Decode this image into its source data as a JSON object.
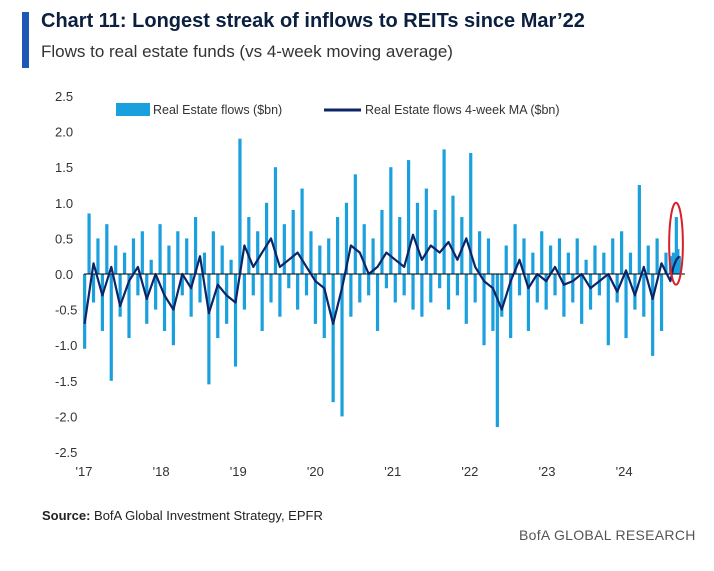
{
  "header": {
    "title": "Chart 11: Longest streak of inflows to REITs since Mar’22",
    "subtitle": "Flows to real estate funds (vs 4-week moving average)"
  },
  "footer": {
    "source_label": "Source:",
    "source_text": "BofA Global Investment Strategy, EPFR",
    "brand": "BofA GLOBAL RESEARCH"
  },
  "colors": {
    "flows": "#1aa0dd",
    "ma": "#0d2466",
    "highlight": "#d8202a",
    "accent": "#1f57b8"
  },
  "chart_data": {
    "type": "bar",
    "ylim": [
      -2.5,
      2.5
    ],
    "yticks": [
      "2.5",
      "2.0",
      "1.5",
      "1.0",
      "0.5",
      "0.0",
      "-0.5",
      "-1.0",
      "-1.5",
      "-2.0",
      "-2.5"
    ],
    "ytick_values": [
      2.5,
      2.0,
      1.5,
      1.0,
      0.5,
      0.0,
      -0.5,
      -1.0,
      -1.5,
      -2.0,
      -2.5
    ],
    "xticks": [
      "'17",
      "'18",
      "'19",
      "'20",
      "'21",
      "'22",
      "'23",
      "'24"
    ],
    "xtick_dates": [
      "2017-01-01",
      "2018-01-01",
      "2019-01-01",
      "2020-01-01",
      "2021-01-01",
      "2022-01-01",
      "2023-01-01",
      "2024-01-01"
    ],
    "xlim": [
      "2017-01-01",
      "2024-10-15"
    ],
    "legend_position": "top",
    "series": [
      {
        "name": "Real Estate flows ($bn)",
        "type": "bar",
        "x": [
          "2017-01-04",
          "2017-01-25",
          "2017-02-15",
          "2017-03-08",
          "2017-03-29",
          "2017-04-19",
          "2017-05-10",
          "2017-05-31",
          "2017-06-21",
          "2017-07-12",
          "2017-08-02",
          "2017-08-23",
          "2017-09-13",
          "2017-10-04",
          "2017-10-25",
          "2017-11-15",
          "2017-12-06",
          "2017-12-27",
          "2018-01-17",
          "2018-02-07",
          "2018-02-28",
          "2018-03-21",
          "2018-04-11",
          "2018-05-02",
          "2018-05-23",
          "2018-06-13",
          "2018-07-04",
          "2018-07-25",
          "2018-08-15",
          "2018-09-05",
          "2018-09-26",
          "2018-10-17",
          "2018-11-07",
          "2018-11-28",
          "2018-12-19",
          "2019-01-09",
          "2019-01-30",
          "2019-02-20",
          "2019-03-13",
          "2019-04-03",
          "2019-04-24",
          "2019-05-15",
          "2019-06-05",
          "2019-06-26",
          "2019-07-17",
          "2019-08-07",
          "2019-08-28",
          "2019-09-18",
          "2019-10-09",
          "2019-10-30",
          "2019-11-20",
          "2019-12-11",
          "2020-01-01",
          "2020-01-22",
          "2020-02-12",
          "2020-03-04",
          "2020-03-25",
          "2020-04-15",
          "2020-05-06",
          "2020-05-27",
          "2020-06-17",
          "2020-07-08",
          "2020-07-29",
          "2020-08-19",
          "2020-09-09",
          "2020-09-30",
          "2020-10-21",
          "2020-11-11",
          "2020-12-02",
          "2020-12-23",
          "2021-01-13",
          "2021-02-03",
          "2021-02-24",
          "2021-03-17",
          "2021-04-07",
          "2021-04-28",
          "2021-05-19",
          "2021-06-09",
          "2021-06-30",
          "2021-07-21",
          "2021-08-11",
          "2021-09-01",
          "2021-09-22",
          "2021-10-13",
          "2021-11-03",
          "2021-11-24",
          "2021-12-15",
          "2022-01-05",
          "2022-01-26",
          "2022-02-16",
          "2022-03-09",
          "2022-03-30",
          "2022-04-20",
          "2022-05-11",
          "2022-06-01",
          "2022-06-22",
          "2022-07-13",
          "2022-08-03",
          "2022-08-24",
          "2022-09-14",
          "2022-10-05",
          "2022-10-26",
          "2022-11-16",
          "2022-12-07",
          "2022-12-28",
          "2023-01-18",
          "2023-02-08",
          "2023-03-01",
          "2023-03-22",
          "2023-04-12",
          "2023-05-03",
          "2023-05-24",
          "2023-06-14",
          "2023-07-05",
          "2023-07-26",
          "2023-08-16",
          "2023-09-06",
          "2023-09-27",
          "2023-10-18",
          "2023-11-08",
          "2023-11-29",
          "2023-12-20",
          "2024-01-10",
          "2024-01-31",
          "2024-02-21",
          "2024-03-13",
          "2024-04-03",
          "2024-04-24",
          "2024-05-15",
          "2024-06-05",
          "2024-06-26",
          "2024-07-17",
          "2024-08-07",
          "2024-08-14",
          "2024-08-21",
          "2024-08-28",
          "2024-09-04",
          "2024-09-11",
          "2024-09-18"
        ],
        "values": [
          -1.05,
          0.85,
          -0.4,
          0.5,
          -0.8,
          0.7,
          -1.5,
          0.4,
          -0.6,
          0.3,
          -0.9,
          0.5,
          -0.3,
          0.6,
          -0.7,
          0.2,
          -0.5,
          0.7,
          -0.8,
          0.4,
          -1.0,
          0.6,
          -0.3,
          0.5,
          -0.6,
          0.8,
          -0.4,
          0.3,
          -1.55,
          0.6,
          -0.9,
          0.4,
          -0.7,
          0.2,
          -1.3,
          1.9,
          -0.5,
          0.8,
          -0.3,
          0.6,
          -0.8,
          1.0,
          -0.4,
          1.5,
          -0.6,
          0.7,
          -0.2,
          0.9,
          -0.5,
          1.2,
          -0.3,
          0.6,
          -0.7,
          0.4,
          -0.9,
          0.5,
          -1.8,
          0.8,
          -2.0,
          1.0,
          -0.6,
          1.4,
          -0.4,
          0.7,
          -0.3,
          0.5,
          -0.8,
          0.9,
          -0.2,
          1.5,
          -0.4,
          0.8,
          -0.3,
          1.6,
          -0.5,
          1.0,
          -0.6,
          1.2,
          -0.4,
          0.9,
          -0.2,
          1.75,
          -0.5,
          1.1,
          -0.3,
          0.8,
          -0.7,
          1.7,
          -0.4,
          0.6,
          -1.0,
          0.5,
          -0.8,
          -2.15,
          -0.6,
          0.4,
          -0.9,
          0.7,
          -0.3,
          0.5,
          -0.8,
          0.3,
          -0.4,
          0.6,
          -0.5,
          0.4,
          -0.3,
          0.5,
          -0.6,
          0.3,
          -0.4,
          0.5,
          -0.7,
          0.2,
          -0.5,
          0.4,
          -0.3,
          0.3,
          -1.0,
          0.5,
          -0.4,
          0.6,
          -0.9,
          0.3,
          -0.5,
          1.25,
          -0.6,
          0.4,
          -1.15,
          0.5,
          -0.8,
          0.3,
          0.25,
          0.1,
          0.3,
          0.2,
          0.8,
          0.35,
          0.25
        ]
      },
      {
        "name": "Real Estate flows 4-week MA ($bn)",
        "type": "line",
        "x": [
          "2017-01-04",
          "2017-02-15",
          "2017-03-29",
          "2017-05-10",
          "2017-06-21",
          "2017-08-02",
          "2017-09-13",
          "2017-10-25",
          "2017-12-06",
          "2018-01-17",
          "2018-02-28",
          "2018-04-11",
          "2018-05-23",
          "2018-07-04",
          "2018-08-15",
          "2018-09-26",
          "2018-11-07",
          "2018-12-19",
          "2019-01-30",
          "2019-03-13",
          "2019-04-24",
          "2019-06-05",
          "2019-07-17",
          "2019-08-28",
          "2019-10-09",
          "2019-11-20",
          "2020-01-01",
          "2020-02-12",
          "2020-03-25",
          "2020-05-06",
          "2020-06-17",
          "2020-07-29",
          "2020-09-09",
          "2020-10-21",
          "2020-12-02",
          "2021-01-13",
          "2021-02-24",
          "2021-04-07",
          "2021-05-19",
          "2021-06-30",
          "2021-08-11",
          "2021-09-22",
          "2021-11-03",
          "2021-12-15",
          "2022-01-26",
          "2022-03-09",
          "2022-04-20",
          "2022-06-01",
          "2022-07-13",
          "2022-08-24",
          "2022-10-05",
          "2022-11-16",
          "2022-12-28",
          "2023-02-08",
          "2023-03-22",
          "2023-05-03",
          "2023-06-14",
          "2023-07-26",
          "2023-09-06",
          "2023-10-18",
          "2023-11-29",
          "2024-01-10",
          "2024-02-21",
          "2024-04-03",
          "2024-05-15",
          "2024-06-26",
          "2024-08-07",
          "2024-08-21",
          "2024-09-04",
          "2024-09-18"
        ],
        "values": [
          -0.7,
          0.15,
          -0.3,
          0.1,
          -0.45,
          -0.1,
          0.1,
          -0.35,
          0.0,
          -0.3,
          -0.5,
          0.0,
          -0.2,
          0.25,
          -0.55,
          -0.15,
          -0.3,
          -0.4,
          0.4,
          0.1,
          0.3,
          0.5,
          0.1,
          0.2,
          0.3,
          0.1,
          -0.1,
          -0.2,
          -0.7,
          -0.2,
          0.4,
          0.3,
          0.0,
          0.1,
          0.3,
          0.2,
          0.1,
          0.55,
          0.2,
          0.4,
          0.3,
          0.45,
          0.2,
          0.5,
          0.1,
          -0.1,
          -0.2,
          -0.5,
          -0.1,
          0.2,
          -0.2,
          0.0,
          -0.1,
          0.1,
          -0.15,
          -0.1,
          0.0,
          -0.2,
          -0.1,
          0.0,
          -0.25,
          0.05,
          -0.3,
          0.1,
          -0.35,
          0.15,
          -0.1,
          0.1,
          0.2,
          0.25
        ]
      }
    ],
    "annotation": {
      "type": "ellipse",
      "from": "2024-08-01",
      "to": "2024-10-05",
      "ymin": -0.15,
      "ymax": 1.0
    }
  }
}
